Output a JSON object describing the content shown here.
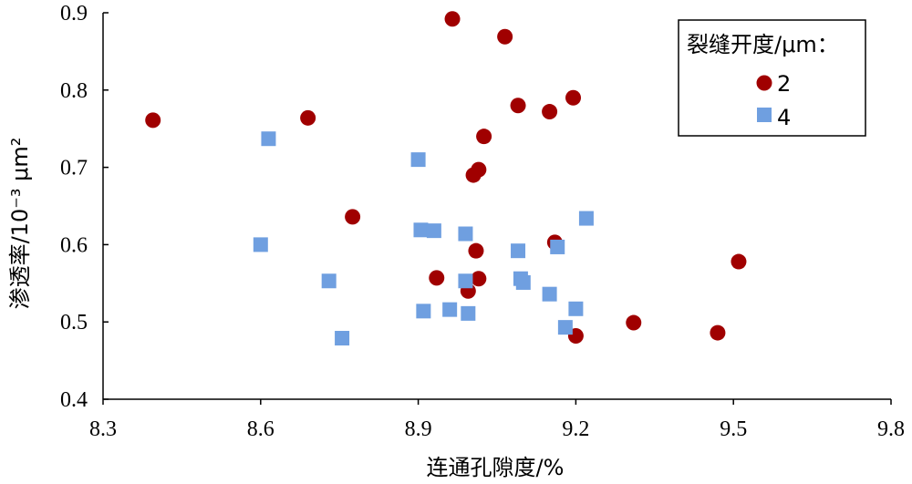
{
  "chart_data": {
    "type": "scatter",
    "xlabel": "连通孔隙度/%",
    "ylabel": "渗透率/10⁻³ μm²",
    "xlim": [
      8.3,
      9.8
    ],
    "ylim": [
      0.4,
      0.9
    ],
    "x_ticks": [
      "8.3",
      "8.6",
      "8.9",
      "9.2",
      "9.5",
      "9.8"
    ],
    "y_ticks": [
      "0.4",
      "0.5",
      "0.6",
      "0.7",
      "0.8",
      "0.9"
    ],
    "grid": false,
    "legend": {
      "title": "裂缝开度/μm：",
      "placement": "top-right"
    },
    "series": [
      {
        "name": "2",
        "marker": "circle",
        "color": "#a00000",
        "points": [
          [
            8.395,
            0.761
          ],
          [
            8.69,
            0.764
          ],
          [
            8.775,
            0.636
          ],
          [
            8.935,
            0.557
          ],
          [
            8.965,
            0.892
          ],
          [
            8.995,
            0.54
          ],
          [
            9.005,
            0.69
          ],
          [
            9.01,
            0.592
          ],
          [
            9.015,
            0.556
          ],
          [
            9.015,
            0.697
          ],
          [
            9.025,
            0.74
          ],
          [
            9.065,
            0.869
          ],
          [
            9.09,
            0.78
          ],
          [
            9.15,
            0.772
          ],
          [
            9.16,
            0.603
          ],
          [
            9.195,
            0.79
          ],
          [
            9.2,
            0.482
          ],
          [
            9.31,
            0.499
          ],
          [
            9.47,
            0.486
          ],
          [
            9.51,
            0.578
          ]
        ]
      },
      {
        "name": "4",
        "marker": "square",
        "color": "#6f9fe0",
        "points": [
          [
            8.6,
            0.6
          ],
          [
            8.615,
            0.737
          ],
          [
            8.73,
            0.553
          ],
          [
            8.755,
            0.479
          ],
          [
            8.9,
            0.71
          ],
          [
            8.905,
            0.619
          ],
          [
            8.91,
            0.514
          ],
          [
            8.93,
            0.618
          ],
          [
            8.96,
            0.516
          ],
          [
            8.99,
            0.614
          ],
          [
            8.99,
            0.553
          ],
          [
            8.995,
            0.511
          ],
          [
            9.09,
            0.592
          ],
          [
            9.095,
            0.556
          ],
          [
            9.1,
            0.551
          ],
          [
            9.15,
            0.536
          ],
          [
            9.165,
            0.597
          ],
          [
            9.18,
            0.493
          ],
          [
            9.2,
            0.517
          ],
          [
            9.22,
            0.634
          ]
        ]
      }
    ]
  }
}
